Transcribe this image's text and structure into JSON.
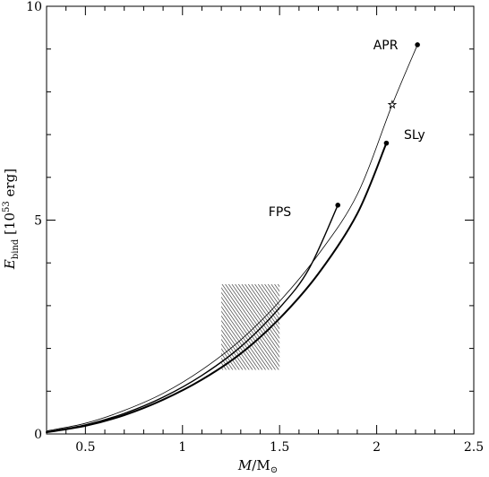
{
  "chart_data": {
    "type": "line",
    "xlabel": "M/M⊙",
    "ylabel": "E_bind [10^53 erg]",
    "xlim": [
      0.3,
      2.5
    ],
    "ylim": [
      0,
      10
    ],
    "x_ticks": [
      {
        "value": 0.5,
        "label": "0.5"
      },
      {
        "value": 1.0,
        "label": "1"
      },
      {
        "value": 1.5,
        "label": "1.5"
      },
      {
        "value": 2.0,
        "label": "2"
      },
      {
        "value": 2.5,
        "label": "2.5"
      }
    ],
    "y_ticks": [
      {
        "value": 0,
        "label": "0"
      },
      {
        "value": 5,
        "label": "5"
      },
      {
        "value": 10,
        "label": "10"
      }
    ],
    "x_minor_step": 0.1,
    "y_minor_step": 1,
    "grid": false,
    "series": [
      {
        "name": "APR",
        "line_width": 0.8,
        "end_marker": "dot",
        "points": [
          [
            0.3,
            0.07
          ],
          [
            0.5,
            0.25
          ],
          [
            0.7,
            0.55
          ],
          [
            0.9,
            0.95
          ],
          [
            1.1,
            1.5
          ],
          [
            1.3,
            2.2
          ],
          [
            1.5,
            3.1
          ],
          [
            1.7,
            4.2
          ],
          [
            1.9,
            5.6
          ],
          [
            2.08,
            7.7
          ],
          [
            2.21,
            9.1
          ]
        ],
        "marker_points": [
          {
            "x": 2.08,
            "y": 7.7,
            "symbol": "star"
          }
        ]
      },
      {
        "name": "SLy",
        "line_width": 2.0,
        "end_marker": "dot",
        "points": [
          [
            0.3,
            0.04
          ],
          [
            0.5,
            0.19
          ],
          [
            0.7,
            0.44
          ],
          [
            0.9,
            0.8
          ],
          [
            1.1,
            1.27
          ],
          [
            1.3,
            1.88
          ],
          [
            1.5,
            2.7
          ],
          [
            1.7,
            3.75
          ],
          [
            1.9,
            5.15
          ],
          [
            2.05,
            6.8
          ]
        ]
      },
      {
        "name": "FPS",
        "line_width": 1.4,
        "end_marker": "dot",
        "points": [
          [
            0.3,
            0.05
          ],
          [
            0.5,
            0.21
          ],
          [
            0.7,
            0.48
          ],
          [
            0.9,
            0.86
          ],
          [
            1.1,
            1.37
          ],
          [
            1.3,
            2.04
          ],
          [
            1.5,
            2.95
          ],
          [
            1.65,
            3.85
          ],
          [
            1.8,
            5.35
          ]
        ]
      }
    ],
    "labels": [
      {
        "text": "APR",
        "x": 2.11,
        "y": 9.1
      },
      {
        "text": "SLy",
        "x": 2.14,
        "y": 7.0
      },
      {
        "text": "FPS",
        "x": 1.56,
        "y": 5.2
      }
    ],
    "shaded_region": {
      "x": [
        1.2,
        1.5
      ],
      "y": [
        1.5,
        3.5
      ],
      "fill": "hatched"
    }
  }
}
